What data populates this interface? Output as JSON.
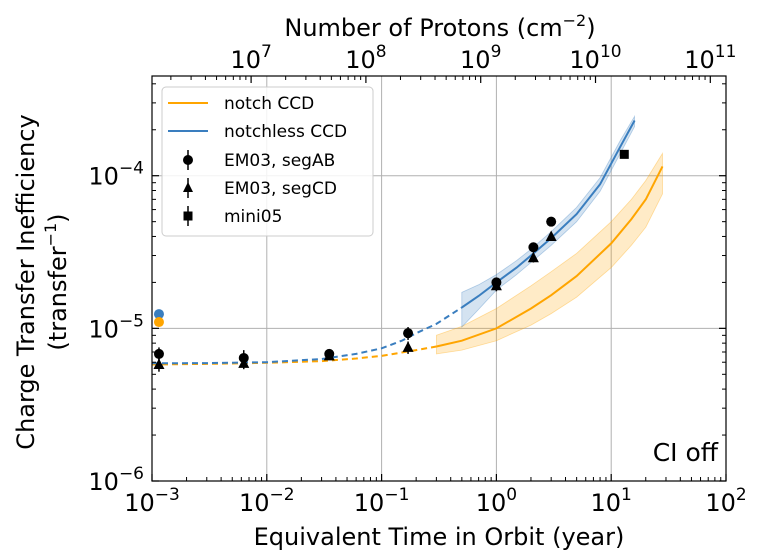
{
  "chart_data": {
    "type": "line",
    "xlabel": "Equivalent Time in Orbit (year)",
    "ylabel_line1": "Charge Transfer Inefficiency",
    "ylabel_line2": "(transfer",
    "ylabel_sup": "−1",
    "ylabel_close": ")",
    "top_xlabel": "Number of Protons (cm",
    "top_xlabel_sup": "−2",
    "top_xlabel_close": ")",
    "xscale": "log",
    "yscale": "log",
    "xlim": [
      0.001,
      100
    ],
    "ylim": [
      1e-06,
      0.00045
    ],
    "grid": true,
    "legend_position": "top-left",
    "annotation": "CI off",
    "x_ticks": [
      {
        "value": 0.001,
        "base": "10",
        "exp": "−3"
      },
      {
        "value": 0.01,
        "base": "10",
        "exp": "−2"
      },
      {
        "value": 0.1,
        "base": "10",
        "exp": "−1"
      },
      {
        "value": 1,
        "base": "10",
        "exp": "0"
      },
      {
        "value": 10,
        "base": "10",
        "exp": "1"
      },
      {
        "value": 100,
        "base": "10",
        "exp": "2"
      }
    ],
    "y_ticks": [
      {
        "value": 1e-06,
        "base": "10",
        "exp": "−6"
      },
      {
        "value": 1e-05,
        "base": "10",
        "exp": "−5"
      },
      {
        "value": 0.0001,
        "base": "10",
        "exp": "−4"
      }
    ],
    "top_ticks": [
      {
        "time_value": 0.0073,
        "base": "10",
        "exp": "7"
      },
      {
        "time_value": 0.073,
        "base": "10",
        "exp": "8"
      },
      {
        "time_value": 0.73,
        "base": "10",
        "exp": "9"
      },
      {
        "time_value": 7.3,
        "base": "10",
        "exp": "10"
      },
      {
        "time_value": 73,
        "base": "10",
        "exp": "11"
      }
    ],
    "series": [
      {
        "name": "notch CCD",
        "kind": "curve",
        "color": "#ffa500",
        "band_color": "#ffa500",
        "dashed_x": [
          0.001,
          0.003,
          0.01,
          0.03,
          0.06,
          0.1,
          0.15,
          0.2,
          0.3
        ],
        "dashed_y": [
          5.8e-06,
          5.85e-06,
          5.95e-06,
          6.1e-06,
          6.35e-06,
          6.6e-06,
          6.95e-06,
          7.2e-06,
          7.6e-06
        ],
        "solid_x": [
          0.3,
          0.5,
          1,
          2,
          3,
          5,
          10,
          15,
          20,
          28
        ],
        "solid_y": [
          7.6e-06,
          8.3e-06,
          1e-05,
          1.35e-05,
          1.65e-05,
          2.2e-05,
          3.6e-05,
          5.2e-05,
          7e-05,
          0.000115
        ],
        "band_lower": [
          6.8e-06,
          7.2e-06,
          8.3e-06,
          1.05e-05,
          1.25e-05,
          1.6e-05,
          2.5e-05,
          3.5e-05,
          4.6e-05,
          7.6e-05
        ],
        "band_upper": [
          9e-06,
          1.03e-05,
          1.35e-05,
          1.9e-05,
          2.35e-05,
          3.1e-05,
          5e-05,
          7e-05,
          9.3e-05,
          0.00014
        ]
      },
      {
        "name": "notchless CCD",
        "kind": "curve",
        "color": "#3a7ebf",
        "band_color": "#3a7ebf",
        "dashed_x": [
          0.001,
          0.003,
          0.01,
          0.03,
          0.06,
          0.1,
          0.15,
          0.2,
          0.3,
          0.5
        ],
        "dashed_y": [
          5.9e-06,
          5.92e-06,
          6e-06,
          6.3e-06,
          6.8e-06,
          7.4e-06,
          8.3e-06,
          9.3e-06,
          1.07e-05,
          1.37e-05
        ],
        "solid_x": [
          0.5,
          0.7,
          1,
          1.5,
          2,
          3,
          5,
          8,
          12,
          16
        ],
        "solid_y": [
          1.37e-05,
          1.63e-05,
          2e-05,
          2.5e-05,
          3e-05,
          3.9e-05,
          5.6e-05,
          8.8e-05,
          0.000155,
          0.00023
        ],
        "band_lower": [
          1.02e-05,
          1.33e-05,
          1.78e-05,
          2.25e-05,
          2.7e-05,
          3.5e-05,
          5e-05,
          7.9e-05,
          0.00014,
          0.00021
        ],
        "band_upper": [
          1.72e-05,
          1.93e-05,
          2.25e-05,
          2.78e-05,
          3.3e-05,
          4.3e-05,
          6.2e-05,
          9.7e-05,
          0.00017,
          0.000245
        ]
      },
      {
        "name": "EM03, segAB",
        "kind": "points",
        "marker": "circle",
        "color": "#000000",
        "x": [
          0.00115,
          0.0063,
          0.035,
          0.17,
          1.0,
          2.1,
          3.0
        ],
        "y": [
          6.8e-06,
          6.4e-06,
          6.8e-06,
          9.3e-06,
          2e-05,
          3.4e-05,
          5e-05
        ],
        "err": [
          7e-07,
          8e-07,
          5e-07,
          9e-07,
          1.5e-06,
          2.5e-06,
          3e-06
        ]
      },
      {
        "name": "EM03, segCD",
        "kind": "points",
        "marker": "triangle",
        "color": "#000000",
        "x": [
          0.00115,
          0.0063,
          0.035,
          0.17,
          1.0,
          2.1,
          3.0
        ],
        "y": [
          5.8e-06,
          5.9e-06,
          6.6e-06,
          7.5e-06,
          1.9e-05,
          2.9e-05,
          4e-05
        ],
        "err": [
          6e-07,
          5e-07,
          4e-07,
          7e-07,
          1.5e-06,
          2e-06,
          2.5e-06
        ]
      },
      {
        "name": "mini05",
        "kind": "points",
        "marker": "square",
        "color": "#000000",
        "x": [
          13.0
        ],
        "y": [
          0.000138
        ],
        "err": [
          0.0
        ]
      },
      {
        "name": "initial notchless",
        "kind": "points",
        "marker": "circle",
        "color": "#3a7ebf",
        "in_legend": false,
        "x": [
          0.00115
        ],
        "y": [
          1.24e-05
        ],
        "err": [
          0.0
        ]
      },
      {
        "name": "initial notch",
        "kind": "points",
        "marker": "circle",
        "color": "#ffa500",
        "in_legend": false,
        "x": [
          0.00115
        ],
        "y": [
          1.1e-05
        ],
        "err": [
          0.0
        ]
      }
    ]
  }
}
